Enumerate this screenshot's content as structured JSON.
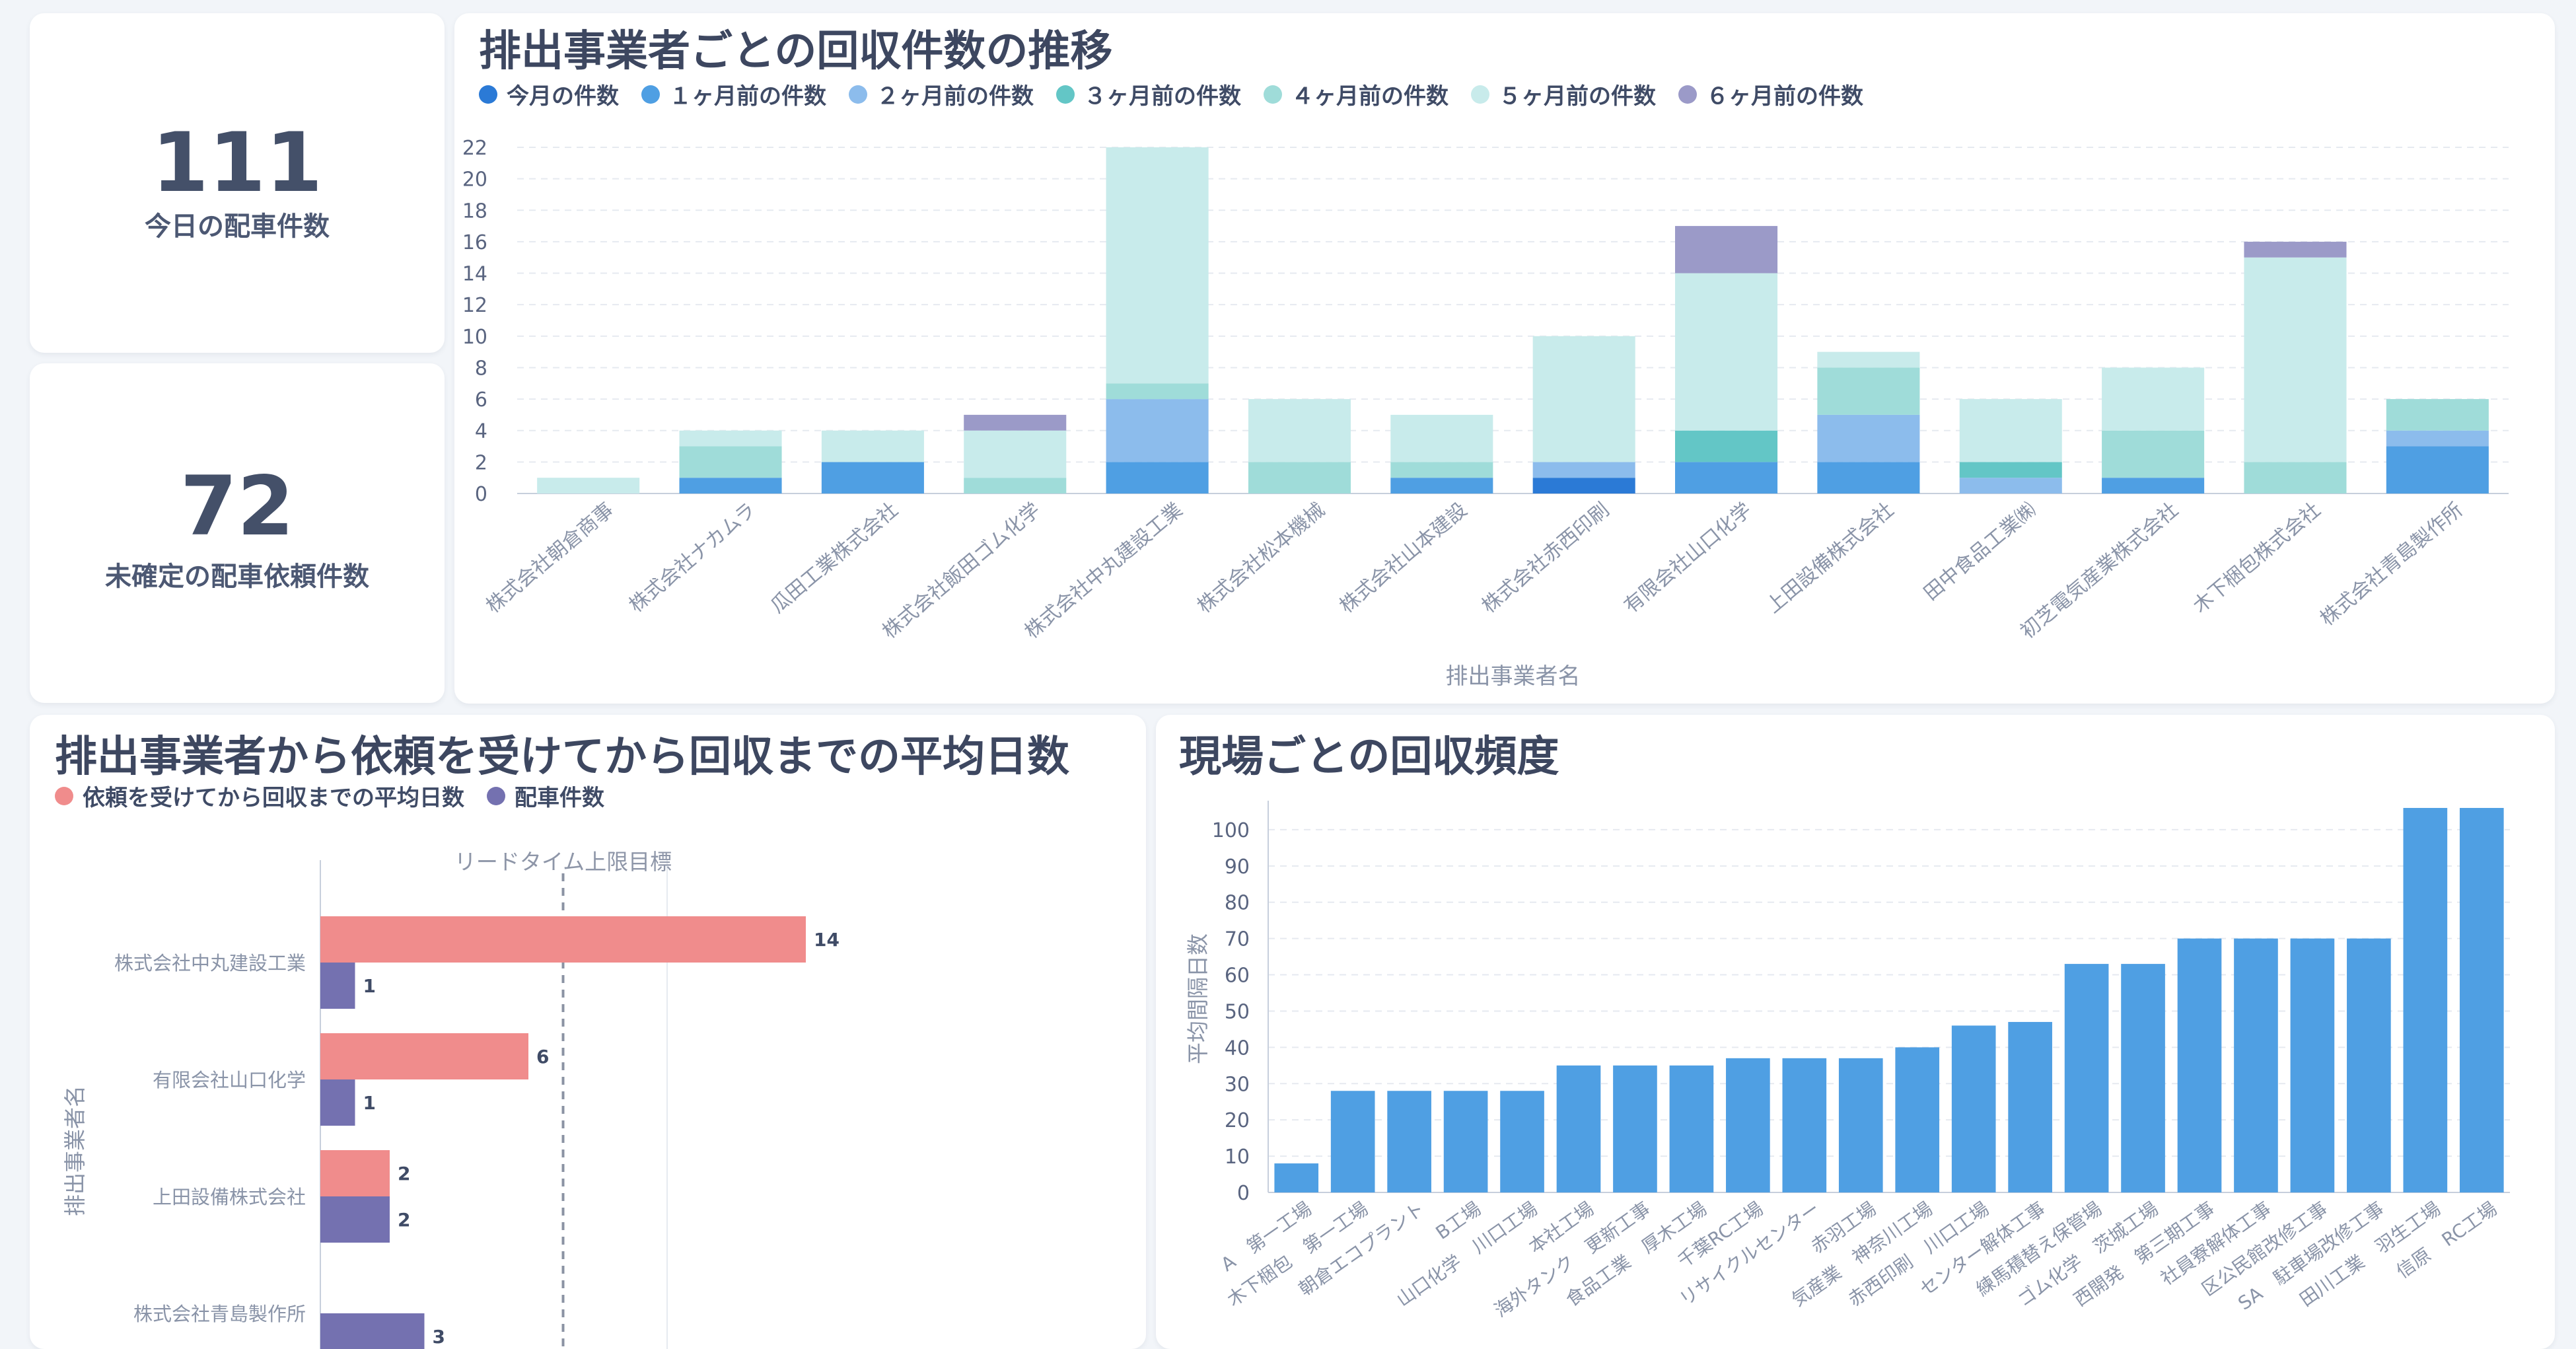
{
  "kpis": [
    {
      "value": "111",
      "label": "今日の配車件数"
    },
    {
      "value": "72",
      "label": "未確定の配車依頼件数"
    }
  ],
  "stacked_title": "排出事業者ごとの回収件数の推移",
  "hbar_title": "排出事業者から依頼を受けてから回収までの平均日数",
  "freq_title": "現場ごとの回収頻度",
  "colors": {
    "bar_blue": "#4f9fe3",
    "hbar_pink": "#f08c8c",
    "hbar_purple": "#7471b0",
    "axis": "#c7cfdc",
    "tick_text": "#8a94a8",
    "grid": "#e6eaf0"
  },
  "chart_data": [
    {
      "type": "bar",
      "stacked": true,
      "title": "排出事業者ごとの回収件数の推移",
      "xlabel": "排出事業者名",
      "ylabel": "",
      "ylim": [
        0,
        22
      ],
      "yticks": [
        0,
        2,
        4,
        6,
        8,
        10,
        12,
        14,
        16,
        18,
        20,
        22
      ],
      "legend_position": "top-left",
      "grid": true,
      "categories": [
        "株式会社朝倉商事",
        "株式会社ナカムラ",
        "瓜田工業株式会社",
        "株式会社飯田ゴム化学",
        "株式会社中丸建設工業",
        "株式会社松本機械",
        "株式会社山本建設",
        "株式会社赤西印刷",
        "有限会社山口化学",
        "上田設備株式会社",
        "田中食品工業㈱",
        "初芝電気産業株式会社",
        "木下梱包株式会社",
        "株式会社青島製作所"
      ],
      "series": [
        {
          "name": "今月の件数",
          "color": "#2b7ad6",
          "values": [
            0,
            0,
            0,
            0,
            0,
            0,
            0,
            1,
            0,
            0,
            0,
            0,
            0,
            0
          ]
        },
        {
          "name": "１ヶ月前の件数",
          "color": "#4f9fe3",
          "values": [
            0,
            1,
            2,
            0,
            2,
            0,
            1,
            0,
            2,
            2,
            0,
            1,
            0,
            3
          ]
        },
        {
          "name": "２ヶ月前の件数",
          "color": "#8cbcec",
          "values": [
            0,
            0,
            0,
            0,
            4,
            0,
            0,
            1,
            0,
            3,
            1,
            0,
            0,
            1
          ]
        },
        {
          "name": "３ヶ月前の件数",
          "color": "#63c6c6",
          "values": [
            0,
            0,
            0,
            0,
            0,
            0,
            0,
            0,
            2,
            0,
            1,
            0,
            0,
            0
          ]
        },
        {
          "name": "４ヶ月前の件数",
          "color": "#9fdcd9",
          "values": [
            0,
            2,
            0,
            1,
            1,
            2,
            1,
            0,
            0,
            3,
            0,
            3,
            2,
            2
          ]
        },
        {
          "name": "５ヶ月前の件数",
          "color": "#c8ebeb",
          "values": [
            1,
            1,
            2,
            3,
            15,
            4,
            3,
            8,
            10,
            1,
            4,
            4,
            13,
            0
          ]
        },
        {
          "name": "６ヶ月前の件数",
          "color": "#9b9ac8",
          "values": [
            0,
            0,
            0,
            1,
            0,
            0,
            0,
            0,
            3,
            0,
            0,
            0,
            1,
            0
          ]
        }
      ]
    },
    {
      "type": "bar",
      "orientation": "horizontal",
      "title": "排出事業者から依頼を受けてから回収までの平均日数",
      "ylabel": "排出事業者名",
      "legend_position": "top-left",
      "reference_line": {
        "label": "リードタイム上限目標",
        "value": 7
      },
      "xlim": [
        0,
        20
      ],
      "categories": [
        "株式会社中丸建設工業",
        "有限会社山口化学",
        "上田設備株式会社",
        "株式会社青島製作所"
      ],
      "series": [
        {
          "name": "依頼を受けてから回収までの平均日数",
          "color": "#f08c8c",
          "values": [
            14,
            6,
            2,
            null
          ]
        },
        {
          "name": "配車件数",
          "color": "#7471b0",
          "values": [
            1,
            1,
            2,
            3
          ]
        }
      ]
    },
    {
      "type": "bar",
      "title": "現場ごとの回収頻度",
      "ylabel": "平均間隔日数",
      "ylim": [
        0,
        108
      ],
      "yticks": [
        0,
        10,
        20,
        30,
        40,
        50,
        60,
        70,
        80,
        90,
        100
      ],
      "grid": true,
      "categories": [
        "A　第一工場",
        "木下梱包　第一工場",
        "朝倉エコプラント",
        "B工場",
        "山口化学　川口工場",
        "本社工場",
        "海外タンク　更新工事",
        "食品工業　厚木工場",
        "千葉RC工場",
        "リサイクルセンター",
        "赤羽工場",
        "気産業　神奈川工場",
        "赤西印刷　川口工場",
        "センター解体工事",
        "練馬積替え保管場",
        "ゴム化学　茨城工場",
        "西開発　第三期工事",
        "社員寮解体工事",
        "区公民館改修工事",
        "SA　駐車場改修工事",
        "田川工業　羽生工場",
        "信原　RC工場"
      ],
      "values": [
        8,
        28,
        28,
        28,
        28,
        35,
        35,
        35,
        37,
        37,
        37,
        40,
        46,
        47,
        63,
        63,
        70,
        70,
        70,
        70,
        106,
        106
      ]
    }
  ]
}
